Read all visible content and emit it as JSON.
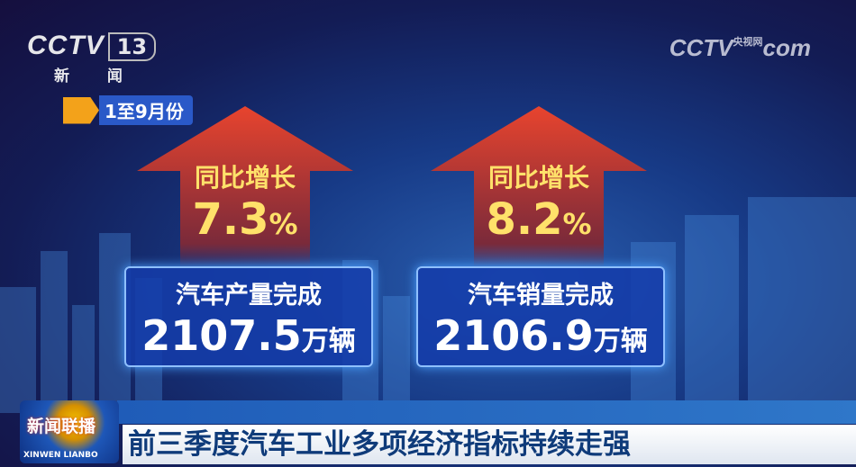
{
  "channel": {
    "logo": "CCTV",
    "number": "13",
    "name": "新 闻"
  },
  "watermark": {
    "logo": "CCTV",
    "domain": "com",
    "label": "央视网"
  },
  "period": {
    "label": "1至9月份"
  },
  "stats": [
    {
      "growth_label": "同比增长",
      "growth_value": "7.3",
      "growth_unit": "%",
      "title": "汽车产量完成",
      "value": "2107.5",
      "unit": "万辆"
    },
    {
      "growth_label": "同比增长",
      "growth_value": "8.2",
      "growth_unit": "%",
      "title": "汽车销量完成",
      "value": "2106.9",
      "unit": "万辆"
    }
  ],
  "program": {
    "name_cn": "新闻联播",
    "name_en": "XINWEN LIANBO"
  },
  "headline": "前三季度汽车工业多项经济指标持续走强",
  "colors": {
    "arrow": "#e8442e",
    "growth_text": "#ffe16a",
    "box": "#143caa",
    "headline_text": "#0f3b7a"
  }
}
